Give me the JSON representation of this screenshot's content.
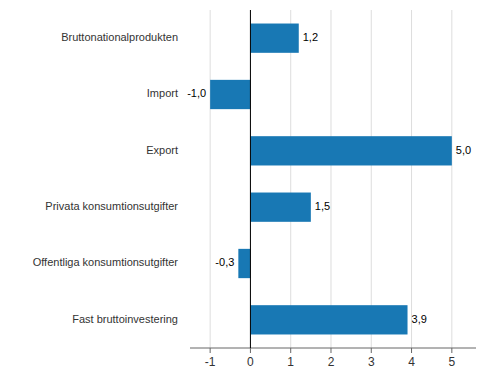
{
  "chart_data": {
    "type": "bar",
    "orientation": "horizontal",
    "categories": [
      "Fast bruttoinvestering",
      "Offentliga konsumtionsutgifter",
      "Privata konsumtionsutgifter",
      "Export",
      "Import",
      "Bruttonationalprodukten"
    ],
    "values": [
      3.9,
      -0.3,
      1.5,
      5.0,
      -1.0,
      1.2
    ],
    "value_labels": [
      "3,9",
      "-0,3",
      "1,5",
      "5,0",
      "-1,0",
      "1,2"
    ],
    "color": "#1878b4",
    "xlim": [
      -1.5,
      5.6
    ],
    "xticks": [
      -1,
      0,
      1,
      2,
      3,
      4,
      5
    ],
    "grid": true,
    "data_labels": true
  }
}
